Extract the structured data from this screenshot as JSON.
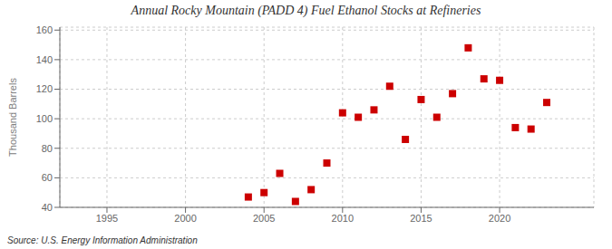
{
  "chart_data": {
    "type": "scatter",
    "title": "Annual Rocky Mountain (PADD 4) Fuel Ethanol Stocks at Refineries",
    "ylabel": "Thousand Barrels",
    "annotation": "Source: U.S. Energy Information Administration",
    "x": [
      2004,
      2005,
      2006,
      2007,
      2008,
      2009,
      2010,
      2011,
      2012,
      2013,
      2014,
      2015,
      2016,
      2017,
      2018,
      2019,
      2020,
      2021,
      2022,
      2023
    ],
    "values": [
      47,
      50,
      63,
      44,
      52,
      70,
      104,
      101,
      106,
      122,
      86,
      113,
      101,
      117,
      148,
      127,
      126,
      94,
      93,
      111
    ],
    "color": "#cc0000",
    "marker": "square",
    "xlim": [
      1992,
      2026
    ],
    "xticks": [
      1995,
      2000,
      2005,
      2010,
      2015,
      2020
    ],
    "ylim": [
      40,
      162
    ],
    "yticks": [
      40,
      60,
      80,
      100,
      120,
      140,
      160
    ],
    "grid": true
  }
}
